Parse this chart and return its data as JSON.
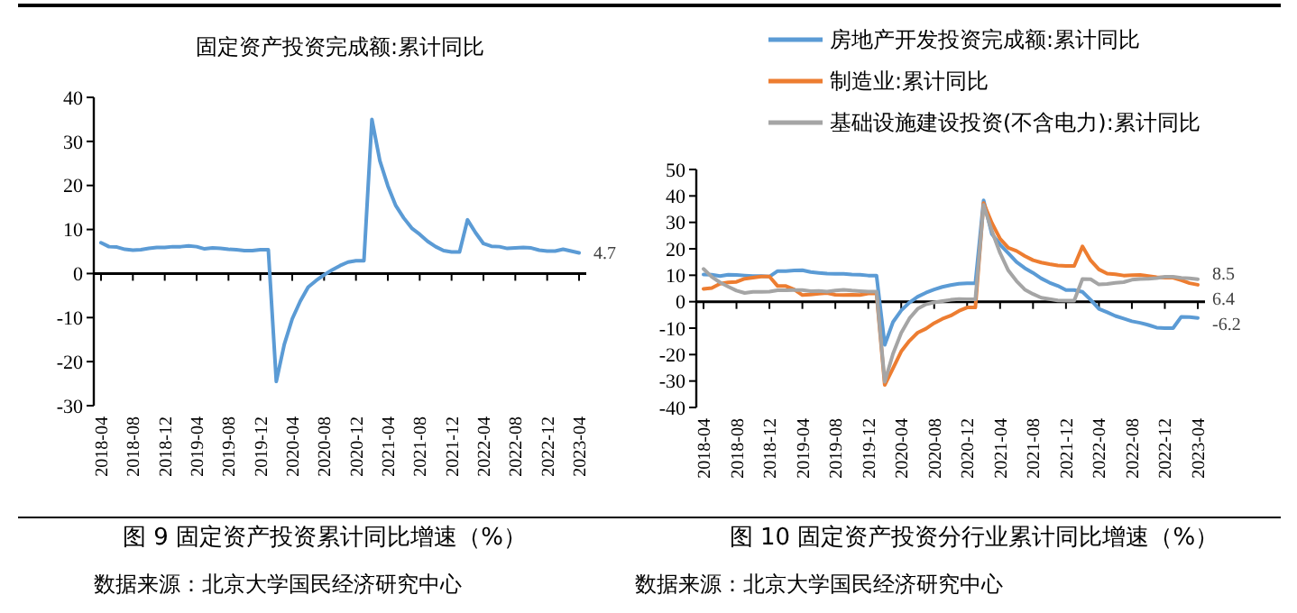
{
  "chart_data": [
    {
      "type": "line",
      "title": "固定资产投资完成额:累计同比",
      "categories": [
        "2018-04",
        null,
        null,
        null,
        "2018-08",
        null,
        null,
        null,
        "2018-12",
        null,
        null,
        null,
        "2019-04",
        null,
        null,
        null,
        "2019-08",
        null,
        null,
        null,
        "2019-12",
        null,
        null,
        null,
        "2020-04",
        null,
        null,
        null,
        "2020-08",
        null,
        null,
        null,
        "2020-12",
        null,
        null,
        null,
        "2021-04",
        null,
        null,
        null,
        "2021-08",
        null,
        null,
        null,
        "2021-12",
        null,
        null,
        null,
        "2022-04",
        null,
        null,
        null,
        "2022-08",
        null,
        null,
        null,
        "2022-12",
        null,
        null,
        null,
        "2023-04"
      ],
      "series": [
        {
          "color": "#5b9bd5",
          "values": [
            7.0,
            6.1,
            6.0,
            5.5,
            5.3,
            5.4,
            5.7,
            5.9,
            5.9,
            6.1,
            6.1,
            6.3,
            6.1,
            5.6,
            5.8,
            5.7,
            5.5,
            5.4,
            5.2,
            5.2,
            5.4,
            5.4,
            -24.5,
            -16.1,
            -10.3,
            -6.3,
            -3.1,
            -1.6,
            -0.3,
            0.8,
            1.8,
            2.6,
            2.9,
            2.9,
            35.0,
            25.6,
            19.9,
            15.4,
            12.6,
            10.3,
            8.9,
            7.3,
            6.1,
            5.2,
            4.9,
            4.9,
            12.2,
            9.3,
            6.8,
            6.2,
            6.1,
            5.7,
            5.8,
            5.9,
            5.8,
            5.3,
            5.1,
            5.1,
            5.5,
            5.1,
            4.7
          ]
        }
      ],
      "ylim": [
        -30,
        40
      ],
      "yticks": [
        -30,
        -20,
        -10,
        0,
        10,
        20,
        30,
        40
      ],
      "legend": false,
      "annotations": [
        {
          "text": "4.7",
          "x": "2023-04",
          "y": 4.7
        },
        "图 9  固定资产投资累计同比增速（%）",
        "数据来源：北京大学国民经济研究中心"
      ]
    },
    {
      "type": "line",
      "categories": [
        "2018-04",
        null,
        null,
        null,
        "2018-08",
        null,
        null,
        null,
        "2018-12",
        null,
        null,
        null,
        "2019-04",
        null,
        null,
        null,
        "2019-08",
        null,
        null,
        null,
        "2019-12",
        null,
        null,
        null,
        "2020-04",
        null,
        null,
        null,
        "2020-08",
        null,
        null,
        null,
        "2020-12",
        null,
        null,
        null,
        "2021-04",
        null,
        null,
        null,
        "2021-08",
        null,
        null,
        null,
        "2021-12",
        null,
        null,
        null,
        "2022-04",
        null,
        null,
        null,
        "2022-08",
        null,
        null,
        null,
        "2022-12",
        null,
        null,
        null,
        "2023-04"
      ],
      "series": [
        {
          "name": "房地产开发投资完成额:累计同比",
          "color": "#5b9bd5",
          "values": [
            10.3,
            10.2,
            9.7,
            10.2,
            10.1,
            9.9,
            9.7,
            9.7,
            9.5,
            11.6,
            11.6,
            11.8,
            11.9,
            11.2,
            10.9,
            10.6,
            10.5,
            10.5,
            10.3,
            10.2,
            9.9,
            9.9,
            -16.3,
            -7.7,
            -3.3,
            -0.3,
            1.9,
            3.4,
            4.6,
            5.6,
            6.3,
            6.8,
            7.0,
            7.0,
            38.3,
            25.6,
            21.6,
            18.3,
            15.0,
            12.7,
            10.9,
            8.8,
            7.2,
            6.0,
            4.4,
            4.4,
            3.7,
            0.7,
            -2.7,
            -4.0,
            -5.4,
            -6.4,
            -7.4,
            -8.0,
            -8.8,
            -9.8,
            -10.0,
            -10.0,
            -5.7,
            -5.8,
            -6.2
          ]
        },
        {
          "name": "制造业:累计同比",
          "color": "#ed7d31",
          "values": [
            4.8,
            5.2,
            6.8,
            7.3,
            7.5,
            8.7,
            9.1,
            9.5,
            9.5,
            5.9,
            5.9,
            4.6,
            2.5,
            2.7,
            3.0,
            3.3,
            2.6,
            2.5,
            2.6,
            2.5,
            3.1,
            3.1,
            -31.5,
            -25.2,
            -18.8,
            -14.8,
            -11.7,
            -10.2,
            -8.1,
            -6.5,
            -5.3,
            -3.5,
            -2.2,
            -2.2,
            37.3,
            29.8,
            23.8,
            20.4,
            19.2,
            17.3,
            15.7,
            14.8,
            14.2,
            13.7,
            13.5,
            13.5,
            20.9,
            15.6,
            12.2,
            10.6,
            10.4,
            9.9,
            10.0,
            10.1,
            9.7,
            9.3,
            9.1,
            9.1,
            8.1,
            7.0,
            6.4
          ]
        },
        {
          "name": "基础设施建设投资(不含电力):累计同比",
          "color": "#a5a5a5",
          "values": [
            12.4,
            9.4,
            7.3,
            5.7,
            4.2,
            3.3,
            3.7,
            3.7,
            3.8,
            4.3,
            4.3,
            4.4,
            4.4,
            4.0,
            4.1,
            3.8,
            4.2,
            4.5,
            4.2,
            4.0,
            3.8,
            3.8,
            -30.3,
            -19.7,
            -11.8,
            -6.3,
            -2.7,
            -1.0,
            -0.3,
            0.2,
            0.7,
            1.0,
            0.9,
            0.9,
            36.6,
            26.8,
            18.4,
            11.8,
            7.8,
            4.6,
            2.9,
            1.5,
            1.0,
            0.5,
            0.4,
            0.4,
            8.6,
            8.5,
            6.5,
            6.7,
            7.1,
            7.4,
            8.3,
            8.6,
            8.7,
            8.9,
            9.4,
            9.4,
            9.0,
            8.8,
            8.5
          ]
        }
      ],
      "ylim": [
        -40,
        50
      ],
      "yticks": [
        -40,
        -30,
        -20,
        -10,
        0,
        10,
        20,
        30,
        40,
        50
      ],
      "legend": "top",
      "annotations": [
        {
          "text": "8.5",
          "x": "2023-04",
          "y": 8.5
        },
        {
          "text": "6.4",
          "x": "2023-04",
          "y": 6.4
        },
        {
          "text": "-6.2",
          "x": "2023-04",
          "y": -6.2
        },
        "图 10  固定资产投资分行业累计同比增速（%）",
        "数据来源：北京大学国民经济研究中心"
      ]
    }
  ]
}
